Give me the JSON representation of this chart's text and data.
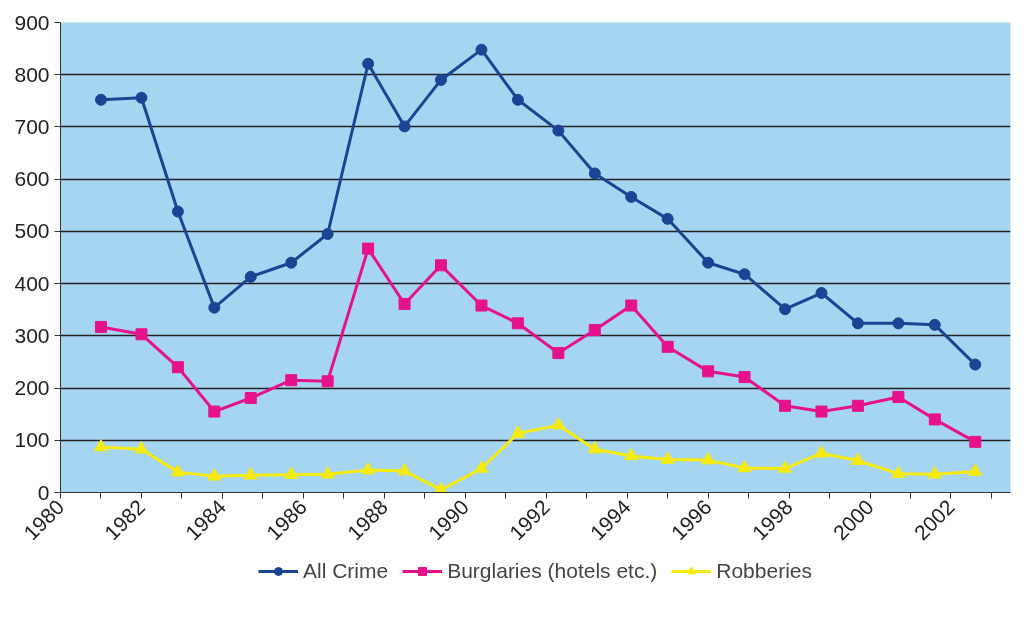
{
  "chart_data": {
    "type": "line",
    "x": [
      1981.0,
      1982.0,
      1982.9,
      1983.8,
      1984.7,
      1985.7,
      1986.6,
      1987.6,
      1988.5,
      1989.4,
      1990.4,
      1991.3,
      1992.3,
      1993.2,
      1994.1,
      1995.0,
      1996.0,
      1996.9,
      1997.9,
      1998.8,
      1999.7,
      2000.7,
      2001.6,
      2002.6
    ],
    "series": [
      {
        "name": "All Crime",
        "color": "#1b4594",
        "marker": "circle",
        "values": [
          752,
          756,
          538,
          354,
          413,
          440,
          495,
          821,
          701,
          790,
          848,
          752,
          693,
          611,
          566,
          524,
          440,
          418,
          351,
          382,
          324,
          324,
          321,
          245
        ]
      },
      {
        "name": "Burglaries (hotels etc.)",
        "color": "#e6128c",
        "marker": "square",
        "values": [
          317,
          303,
          240,
          155,
          181,
          215,
          213,
          467,
          361,
          435,
          358,
          324,
          267,
          311,
          358,
          279,
          232,
          221,
          166,
          155,
          166,
          183,
          140,
          97
        ]
      },
      {
        "name": "Robberies",
        "color": "#f5eb0e",
        "marker": "triangle",
        "values": [
          87,
          83,
          39,
          31,
          33,
          34,
          35,
          43,
          41,
          5,
          46,
          113,
          129,
          83,
          70,
          63,
          62,
          47,
          46,
          75,
          61,
          36,
          35,
          40
        ]
      }
    ],
    "xlim": [
      1980,
      2003.47
    ],
    "xticks": [
      1980,
      {
        "value": 1981,
        "label": null
      },
      1982,
      {
        "value": 1983,
        "label": null
      },
      1984,
      {
        "value": 1985,
        "label": null
      },
      1986,
      {
        "value": 1987,
        "label": null
      },
      1988,
      {
        "value": 1989,
        "label": null
      },
      1990,
      {
        "value": 1991,
        "label": null
      },
      1992,
      {
        "value": 1993,
        "label": null
      },
      1994,
      {
        "value": 1995,
        "label": null
      },
      1996,
      {
        "value": 1997,
        "label": null
      },
      1998,
      {
        "value": 1999,
        "label": null
      },
      2000,
      {
        "value": 2001,
        "label": null
      },
      2002,
      {
        "value": 2003,
        "label": null
      }
    ],
    "ylim": [
      0,
      900
    ],
    "yticks": [
      0,
      100,
      200,
      300,
      400,
      500,
      600,
      700,
      800,
      900
    ],
    "grid": "y",
    "legend": "bottom",
    "line_style": "solid"
  }
}
